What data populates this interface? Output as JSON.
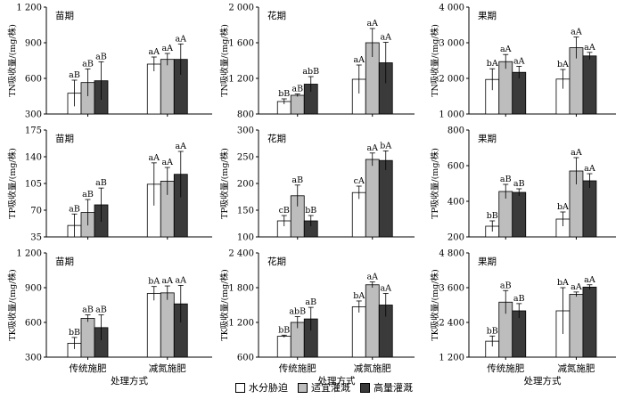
{
  "legend": [
    "水分胁迫",
    "适宜灌溉",
    "高量灌溉"
  ],
  "colors": [
    "#ffffff",
    "#bdbdbd",
    "#3a3a3a"
  ],
  "xlabel": "处理方式",
  "chart_data": [
    {
      "type": "bar",
      "title": "苗期",
      "ylabel": "TN吸收量/(mg/株)",
      "categories": [
        "传统施肥",
        "减氮施肥"
      ],
      "ylim": [
        300,
        1200
      ],
      "yticks": [
        "300",
        "600",
        "900",
        "1 200"
      ],
      "series": [
        {
          "name": "水分胁迫",
          "values": [
            475,
            720
          ],
          "errors": [
            110,
            60
          ],
          "labels": [
            "aB",
            "aA"
          ]
        },
        {
          "name": "适宜灌溉",
          "values": [
            565,
            760
          ],
          "errors": [
            115,
            50
          ],
          "labels": [
            "aB",
            "aA"
          ]
        },
        {
          "name": "高量灌溉",
          "values": [
            580,
            760
          ],
          "errors": [
            160,
            130
          ],
          "labels": [
            "aB",
            "aA"
          ]
        }
      ]
    },
    {
      "type": "bar",
      "title": "花期",
      "ylabel": "TN吸收量/(mg/株)",
      "categories": [
        "传统施肥",
        "减氮施肥"
      ],
      "ylim": [
        800,
        2000
      ],
      "yticks": [
        "800",
        "1 200",
        "1 600",
        "2 000"
      ],
      "series": [
        {
          "name": "水分胁迫",
          "values": [
            940,
            1190
          ],
          "errors": [
            30,
            160
          ],
          "labels": [
            "bB",
            "aA"
          ]
        },
        {
          "name": "适宜灌溉",
          "values": [
            1010,
            1600
          ],
          "errors": [
            15,
            160
          ],
          "labels": [
            "aB",
            "aA"
          ]
        },
        {
          "name": "高量灌溉",
          "values": [
            1135,
            1375
          ],
          "errors": [
            85,
            230
          ],
          "labels": [
            "abB",
            "aA"
          ]
        }
      ]
    },
    {
      "type": "bar",
      "title": "果期",
      "ylabel": "TN吸收量/(mg/株)",
      "categories": [
        "传统施肥",
        "减氮施肥"
      ],
      "ylim": [
        1000,
        4000
      ],
      "yticks": [
        "1 000",
        "2 000",
        "3 000",
        "4 000"
      ],
      "series": [
        {
          "name": "水分胁迫",
          "values": [
            1970,
            1980
          ],
          "errors": [
            300,
            270
          ],
          "labels": [
            "bA",
            "bA"
          ]
        },
        {
          "name": "适宜灌溉",
          "values": [
            2470,
            2860
          ],
          "errors": [
            200,
            300
          ],
          "labels": [
            "aA",
            "aA"
          ]
        },
        {
          "name": "高量灌溉",
          "values": [
            2170,
            2630
          ],
          "errors": [
            170,
            100
          ],
          "labels": [
            "aA",
            "aA"
          ]
        }
      ]
    },
    {
      "type": "bar",
      "title": "苗期",
      "ylabel": "TP吸收量/(mg/株)",
      "categories": [
        "传统施肥",
        "减氮施肥"
      ],
      "ylim": [
        35,
        175
      ],
      "yticks": [
        "35",
        "70",
        "105",
        "140",
        "175"
      ],
      "series": [
        {
          "name": "水分胁迫",
          "values": [
            50,
            104
          ],
          "errors": [
            15,
            28
          ],
          "labels": [
            "aB",
            "aA"
          ]
        },
        {
          "name": "适宜灌溉",
          "values": [
            67,
            108
          ],
          "errors": [
            17,
            18
          ],
          "labels": [
            "aB",
            "aA"
          ]
        },
        {
          "name": "高量灌溉",
          "values": [
            77,
            117
          ],
          "errors": [
            22,
            30
          ],
          "labels": [
            "aB",
            "aA"
          ]
        }
      ]
    },
    {
      "type": "bar",
      "title": "花期",
      "ylabel": "TP吸收量/(mg/株)",
      "categories": [
        "传统施肥",
        "减氮施肥"
      ],
      "ylim": [
        100,
        300
      ],
      "yticks": [
        "100",
        "150",
        "200",
        "250",
        "300"
      ],
      "series": [
        {
          "name": "水分胁迫",
          "values": [
            130,
            183
          ],
          "errors": [
            10,
            12
          ],
          "labels": [
            "cB",
            "cA"
          ]
        },
        {
          "name": "适宜灌溉",
          "values": [
            177,
            245
          ],
          "errors": [
            20,
            12
          ],
          "labels": [
            "aB",
            "aA"
          ]
        },
        {
          "name": "高量灌溉",
          "values": [
            130,
            243
          ],
          "errors": [
            10,
            18
          ],
          "labels": [
            "bB",
            "bA"
          ]
        }
      ]
    },
    {
      "type": "bar",
      "title": "果期",
      "ylabel": "TP吸收量/(mg/株)",
      "categories": [
        "传统施肥",
        "减氮施肥"
      ],
      "ylim": [
        200,
        800
      ],
      "yticks": [
        "200",
        "400",
        "600",
        "800"
      ],
      "series": [
        {
          "name": "水分胁迫",
          "values": [
            260,
            300
          ],
          "errors": [
            30,
            40
          ],
          "labels": [
            "bB",
            "bA"
          ]
        },
        {
          "name": "适宜灌溉",
          "values": [
            455,
            570
          ],
          "errors": [
            40,
            75
          ],
          "labels": [
            "aB",
            "aA"
          ]
        },
        {
          "name": "高量灌溉",
          "values": [
            450,
            515
          ],
          "errors": [
            20,
            40
          ],
          "labels": [
            "aB",
            "aA"
          ]
        }
      ]
    },
    {
      "type": "bar",
      "title": "苗期",
      "ylabel": "TK吸收量/(mg/株)",
      "categories": [
        "传统施肥",
        "减氮施肥"
      ],
      "ylim": [
        300,
        1200
      ],
      "yticks": [
        "300",
        "600",
        "900",
        "1 200"
      ],
      "series": [
        {
          "name": "水分胁迫",
          "values": [
            420,
            850
          ],
          "errors": [
            50,
            60
          ],
          "labels": [
            "bB",
            "bA"
          ]
        },
        {
          "name": "适宜灌溉",
          "values": [
            635,
            855
          ],
          "errors": [
            30,
            60
          ],
          "labels": [
            "aB",
            "aA"
          ]
        },
        {
          "name": "高量灌溉",
          "values": [
            555,
            760
          ],
          "errors": [
            110,
            160
          ],
          "labels": [
            "aB",
            "aA"
          ]
        }
      ]
    },
    {
      "type": "bar",
      "title": "花期",
      "ylabel": "TK吸收量/(mg/株)",
      "categories": [
        "传统施肥",
        "减氮施肥"
      ],
      "ylim": [
        600,
        2400
      ],
      "yticks": [
        "600",
        "1 200",
        "1 800",
        "2 400"
      ],
      "series": [
        {
          "name": "水分胁迫",
          "values": [
            960,
            1470
          ],
          "errors": [
            20,
            100
          ],
          "labels": [
            "bB",
            "bA"
          ]
        },
        {
          "name": "适宜灌溉",
          "values": [
            1200,
            1850
          ],
          "errors": [
            100,
            50
          ],
          "labels": [
            "abB",
            "aA"
          ]
        },
        {
          "name": "高量灌溉",
          "values": [
            1260,
            1500
          ],
          "errors": [
            200,
            200
          ],
          "labels": [
            "aB",
            "aA"
          ]
        }
      ]
    },
    {
      "type": "bar",
      "title": "果期",
      "ylabel": "TK吸收量/(mg/株)",
      "categories": [
        "传统施肥",
        "减氮施肥"
      ],
      "ylim": [
        1200,
        4800
      ],
      "yticks": [
        "1 200",
        "2 400",
        "3 600",
        "4 800"
      ],
      "series": [
        {
          "name": "水分胁迫",
          "values": [
            1750,
            2800
          ],
          "errors": [
            180,
            800
          ],
          "labels": [
            "bB",
            "bA"
          ]
        },
        {
          "name": "适宜灌溉",
          "values": [
            3100,
            3370
          ],
          "errors": [
            400,
            80
          ],
          "labels": [
            "aB",
            "aA"
          ]
        },
        {
          "name": "高量灌溉",
          "values": [
            2800,
            3620
          ],
          "errors": [
            250,
            80
          ],
          "labels": [
            "aB",
            "aA"
          ]
        }
      ]
    }
  ]
}
